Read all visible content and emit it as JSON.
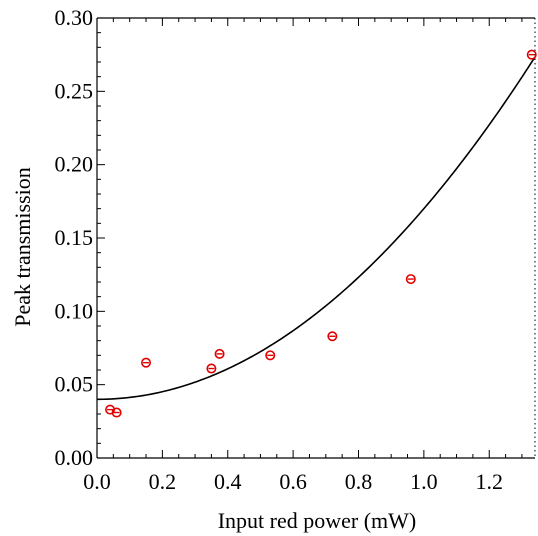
{
  "chart_data": {
    "type": "scatter",
    "title": "",
    "xlabel": "Input red power (mW)",
    "ylabel": "Peak transmission",
    "xlim": [
      0.0,
      1.34
    ],
    "ylim": [
      0.0,
      0.3
    ],
    "xticks": [
      0.0,
      0.2,
      0.4,
      0.6,
      0.8,
      1.0,
      1.2
    ],
    "xtick_labels": [
      "0.0",
      "0.2",
      "0.4",
      "0.6",
      "0.8",
      "1.0",
      "1.2"
    ],
    "yticks": [
      0.0,
      0.05,
      0.1,
      0.15,
      0.2,
      0.25,
      0.3
    ],
    "ytick_labels": [
      "0.00",
      "0.05",
      "0.10",
      "0.15",
      "0.20",
      "0.25",
      "0.30"
    ],
    "grid": false,
    "points": [
      {
        "x": 0.04,
        "y": 0.033
      },
      {
        "x": 0.06,
        "y": 0.031
      },
      {
        "x": 0.15,
        "y": 0.065
      },
      {
        "x": 0.35,
        "y": 0.061
      },
      {
        "x": 0.375,
        "y": 0.071
      },
      {
        "x": 0.53,
        "y": 0.07
      },
      {
        "x": 0.72,
        "y": 0.083
      },
      {
        "x": 0.96,
        "y": 0.122
      },
      {
        "x": 1.33,
        "y": 0.275
      }
    ],
    "fit_curve": {
      "type": "quadratic",
      "a": 0.04,
      "c": 0.13
    },
    "colors": {
      "points": "#e00000",
      "curve": "#000000",
      "axes": "#000000"
    }
  }
}
